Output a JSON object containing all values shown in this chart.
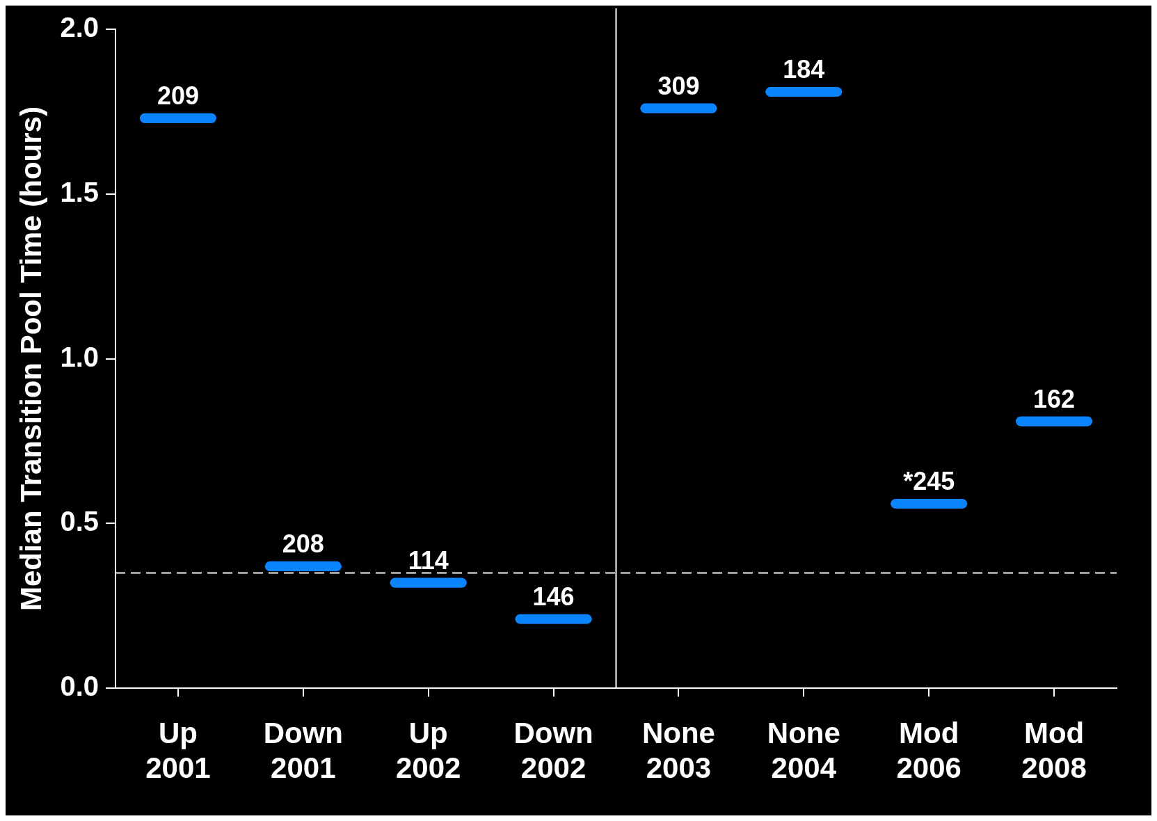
{
  "chart_data": {
    "type": "box",
    "ylabel": "Median Transition Pool Time (hours)",
    "categories": [
      "Up 2001",
      "Down 2001",
      "Up 2002",
      "Down 2002",
      "None 2003",
      "None 2004",
      "Mod 2006",
      "Mod 2008"
    ],
    "boxes": [
      {
        "low": 1.715,
        "q1": 1.715,
        "median": 1.73,
        "q3": 1.745,
        "high": 1.745
      },
      {
        "low": 0.355,
        "q1": 0.355,
        "median": 0.37,
        "q3": 0.385,
        "high": 0.385
      },
      {
        "low": 0.305,
        "q1": 0.305,
        "median": 0.32,
        "q3": 0.335,
        "high": 0.335
      },
      {
        "low": 0.195,
        "q1": 0.195,
        "median": 0.21,
        "q3": 0.225,
        "high": 0.225
      },
      {
        "low": 1.745,
        "q1": 1.745,
        "median": 1.76,
        "q3": 1.775,
        "high": 1.775
      },
      {
        "low": 1.795,
        "q1": 1.795,
        "median": 1.81,
        "q3": 1.825,
        "high": 1.825
      },
      {
        "low": 0.545,
        "q1": 0.545,
        "median": 0.56,
        "q3": 0.575,
        "high": 0.575
      },
      {
        "low": 0.795,
        "q1": 0.795,
        "median": 0.81,
        "q3": 0.825,
        "high": 0.825
      }
    ],
    "color": "#0a84ff",
    "ylim": [
      0,
      2
    ],
    "yticks": [
      {
        "value": 0,
        "label": "0.0"
      },
      0.5,
      {
        "value": 1,
        "label": "1.0"
      },
      1.5,
      {
        "value": 2,
        "label": "2.0"
      }
    ],
    "grid": false,
    "legend": false,
    "ref_lines": [
      {
        "axis": "y",
        "value": 0.35,
        "color": "#ffffff",
        "line_style": "dashed"
      }
    ],
    "annotations": [
      {
        "text": "209",
        "x": "Up 2001",
        "y": 1.73
      },
      {
        "text": "208",
        "x": "Down 2001",
        "y": 0.37
      },
      {
        "text": "114",
        "x": "Up 2002",
        "y": 0.32
      },
      {
        "text": "146",
        "x": "Down 2002",
        "y": 0.21
      },
      {
        "text": "309",
        "x": "None 2003",
        "y": 1.76
      },
      {
        "text": "184",
        "x": "None 2004",
        "y": 1.81
      },
      {
        "text": "*245",
        "x": "Mod 2006",
        "y": 0.56
      },
      {
        "text": "162",
        "x": "Mod 2008",
        "y": 0.81
      }
    ]
  }
}
